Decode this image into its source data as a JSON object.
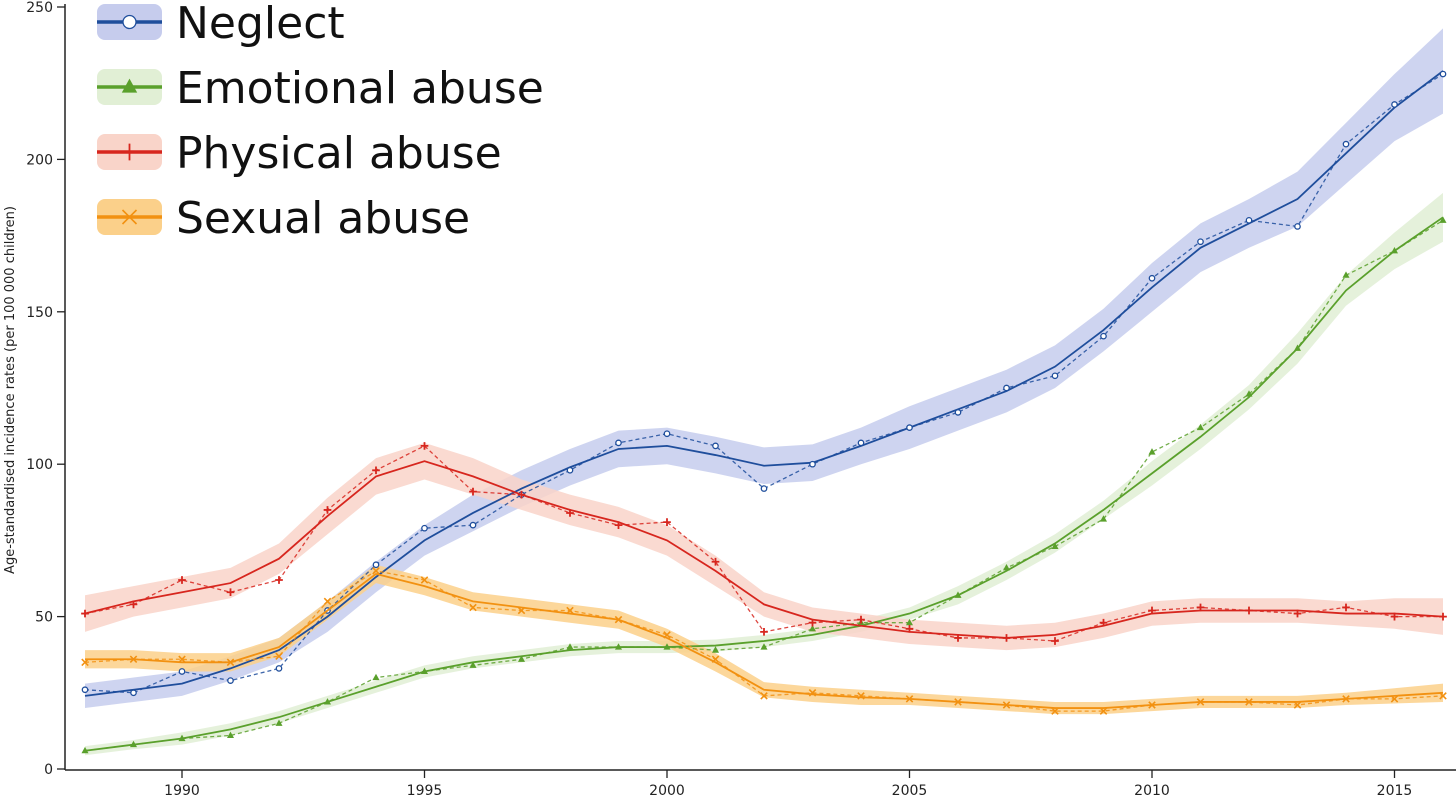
{
  "chart_data": {
    "type": "line",
    "title": "",
    "xlabel": "",
    "ylabel": "Age-standardised incidence rates (per 100 000 children)",
    "xlim": [
      1988,
      2016
    ],
    "ylim": [
      0,
      250
    ],
    "xticks": [
      1990,
      1995,
      2000,
      2005,
      2010,
      2015
    ],
    "yticks": [
      0,
      50,
      100,
      150,
      200,
      250
    ],
    "grid": false,
    "legend_position": "top-left",
    "x": [
      1988,
      1989,
      1990,
      1991,
      1992,
      1993,
      1994,
      1995,
      1996,
      1997,
      1998,
      1999,
      2000,
      2001,
      2002,
      2003,
      2004,
      2005,
      2006,
      2007,
      2008,
      2009,
      2010,
      2011,
      2012,
      2013,
      2014,
      2015,
      2016
    ],
    "series": [
      {
        "name": "Neglect",
        "color": "#1f4e9c",
        "band_color": "#c6cced",
        "marker": "open-circle",
        "observed": [
          26,
          25,
          32,
          29,
          33,
          52,
          67,
          79,
          80,
          90,
          98,
          107,
          110,
          106,
          92,
          100,
          107,
          112,
          117,
          125,
          129,
          142,
          161,
          173,
          180,
          178,
          205,
          218,
          228
        ],
        "fitted": [
          24,
          26,
          28,
          33,
          39,
          50,
          63,
          75,
          84,
          92,
          99,
          105,
          106,
          103,
          99.5,
          100.5,
          106,
          112,
          118,
          124,
          132,
          144,
          158,
          171,
          179,
          187,
          202,
          217,
          229
        ],
        "interval_halfwidth": [
          4,
          4,
          4,
          4,
          4,
          5,
          5,
          5,
          6,
          6,
          6,
          6,
          6,
          6,
          6,
          6,
          6,
          7,
          7,
          7,
          7,
          7,
          8,
          8,
          8,
          9,
          10,
          11,
          14
        ]
      },
      {
        "name": "Emotional abuse",
        "color": "#5aa02c",
        "band_color": "#e1efd5",
        "marker": "filled-triangle",
        "observed": [
          6,
          8,
          10,
          11,
          15,
          22,
          30,
          32,
          34,
          36,
          40,
          40,
          40,
          39,
          40,
          46,
          48,
          48,
          57,
          66,
          73,
          82,
          104,
          112,
          123,
          138,
          162,
          170,
          180
        ],
        "fitted": [
          6,
          8,
          10,
          13,
          17,
          22,
          27,
          32,
          35,
          37,
          39,
          40,
          40,
          40.5,
          42,
          44,
          47,
          51,
          57,
          65,
          74,
          85,
          97,
          109,
          122,
          138,
          157,
          170,
          181
        ],
        "interval_halfwidth": [
          1.5,
          1.5,
          2,
          2,
          2,
          2,
          2,
          2,
          2,
          2,
          2,
          2,
          2,
          2,
          2,
          2,
          2,
          2,
          3,
          3,
          3,
          3,
          4,
          4,
          4,
          5,
          5,
          6,
          8
        ]
      },
      {
        "name": "Physical abuse",
        "color": "#d7261e",
        "band_color": "#f9d4c9",
        "marker": "plus",
        "observed": [
          51,
          54,
          62,
          58,
          62,
          85,
          98,
          106,
          91,
          90,
          84,
          80,
          81,
          68,
          45,
          48,
          49,
          46,
          43,
          43,
          42,
          48,
          52,
          53,
          52,
          51,
          53,
          50,
          50
        ],
        "fitted": [
          51,
          55,
          58,
          61,
          69,
          83,
          96,
          101,
          96,
          90,
          85,
          81,
          75,
          65,
          54,
          49,
          47,
          45,
          44,
          43,
          44,
          47,
          51,
          52,
          52,
          52,
          51,
          51,
          50
        ],
        "interval_halfwidth": [
          6,
          5,
          5,
          5,
          5,
          6,
          6,
          6,
          6,
          5,
          5,
          5,
          5,
          5,
          4,
          4,
          4,
          4,
          4,
          4,
          4,
          4,
          4,
          4,
          4,
          4,
          4,
          5,
          6
        ]
      },
      {
        "name": "Sexual abuse",
        "color": "#f29111",
        "band_color": "#fbd08a",
        "marker": "cross",
        "observed": [
          35,
          36,
          36,
          35,
          37,
          55,
          65,
          62,
          53,
          52,
          52,
          49,
          44,
          36,
          24,
          25,
          24,
          23,
          22,
          21,
          19,
          19,
          21,
          22,
          22,
          21,
          23,
          23,
          24
        ],
        "fitted": [
          36,
          36,
          35,
          35,
          40,
          52,
          64,
          60,
          55,
          53,
          51,
          49,
          43,
          35,
          26,
          24.5,
          23.5,
          23,
          22,
          21,
          20,
          20,
          21,
          22,
          22,
          22,
          23,
          24,
          25
        ],
        "interval_halfwidth": [
          3,
          3,
          3,
          3,
          3,
          3,
          3,
          3,
          3,
          3,
          3,
          3,
          3,
          3,
          2.5,
          2.5,
          2.5,
          2,
          2,
          2,
          2,
          2,
          2,
          2,
          2,
          2,
          2,
          2.5,
          3
        ]
      }
    ]
  }
}
